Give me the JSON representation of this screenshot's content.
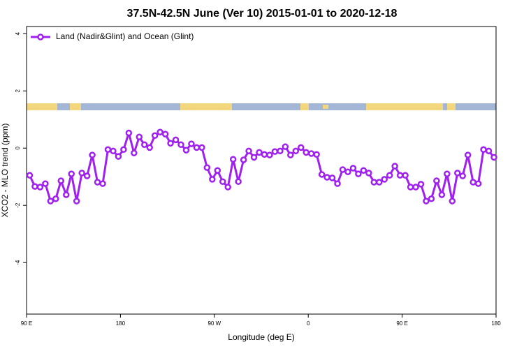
{
  "chart_data": {
    "type": "line",
    "title": "37.5N-42.5N June (Ver 10)   2015-01-01 to 2020-12-18",
    "x_label": "Longitude (deg E)",
    "y_label": "XCO2 - MLO trend (ppm)",
    "xlim": [
      90,
      540
    ],
    "ylim": [
      -5.8,
      4.25
    ],
    "xticks": [
      {
        "value": 90,
        "label": "90 E"
      },
      {
        "value": 180,
        "label": "180"
      },
      {
        "value": 270,
        "label": "90 W"
      },
      {
        "value": 360,
        "label": "0"
      },
      {
        "value": 450,
        "label": "90 E"
      },
      {
        "value": 540,
        "label": "180"
      }
    ],
    "yticks": [
      4,
      2,
      0,
      -2,
      -4
    ],
    "legend": "top-left",
    "grid": false,
    "x": [
      93,
      98,
      103,
      108,
      113,
      118,
      123,
      128,
      133,
      138,
      143,
      148,
      153,
      158,
      163,
      168,
      173,
      178,
      183,
      188,
      193,
      198,
      203,
      208,
      213,
      218,
      223,
      228,
      233,
      238,
      243,
      248,
      253,
      258,
      263,
      268,
      273,
      278,
      283,
      288,
      293,
      298,
      303,
      308,
      313,
      318,
      323,
      328,
      333,
      338,
      343,
      348,
      353,
      358,
      363,
      368,
      373,
      378,
      383,
      388,
      393,
      398,
      403,
      408,
      413,
      418,
      423,
      428,
      433,
      438,
      443,
      448,
      453,
      458,
      463,
      468,
      473,
      478,
      483,
      488,
      493,
      498,
      503,
      508,
      513,
      518,
      523,
      528,
      533,
      538
    ],
    "series": [
      {
        "name": "Land (Nadir&Glint) and Ocean (Glint)",
        "color": "#a020f0",
        "values": [
          -0.95,
          -1.34,
          -1.36,
          -1.24,
          -1.85,
          -1.77,
          -1.14,
          -1.63,
          -0.9,
          -1.85,
          -0.87,
          -0.97,
          -0.24,
          -1.19,
          -1.24,
          -0.05,
          -0.1,
          -0.29,
          -0.05,
          0.53,
          -0.17,
          0.39,
          0.12,
          0.02,
          0.44,
          0.56,
          0.49,
          0.17,
          0.29,
          0.12,
          -0.07,
          0.15,
          0.02,
          0.02,
          -0.68,
          -1.09,
          -0.78,
          -1.17,
          -1.36,
          -0.39,
          -1.17,
          -0.41,
          -0.1,
          -0.32,
          -0.15,
          -0.22,
          -0.24,
          -0.12,
          -0.1,
          0.05,
          -0.24,
          -0.1,
          0.02,
          -0.15,
          -0.19,
          -0.22,
          -0.92,
          -1.02,
          -1.04,
          -1.24,
          -0.75,
          -0.83,
          -0.7,
          -0.9,
          -0.78,
          -0.87,
          -1.19,
          -1.19,
          -1.09,
          -0.95,
          -0.63,
          -0.95,
          -0.95,
          -1.36,
          -1.36,
          -1.26,
          -1.85,
          -1.77,
          -1.14,
          -1.63,
          -0.9,
          -1.85,
          -0.87,
          -0.97,
          -0.24,
          -1.19,
          -1.24,
          -0.05,
          -0.1,
          -0.32
        ]
      }
    ]
  }
}
